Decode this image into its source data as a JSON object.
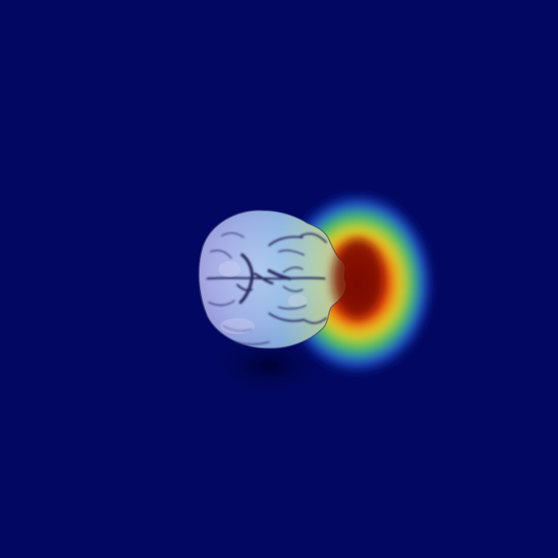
{
  "image": {
    "kind": "brain MRI axial slice with heatmap overlay",
    "colors": {
      "background": "#020861",
      "brain_tissue": "#B8B8EC",
      "heat_peak": "#7A0A00",
      "heat_high": "#E0380C",
      "heat_mid": "#E8D020",
      "heat_low": "#30C060",
      "heat_cool": "#2060E0"
    }
  }
}
